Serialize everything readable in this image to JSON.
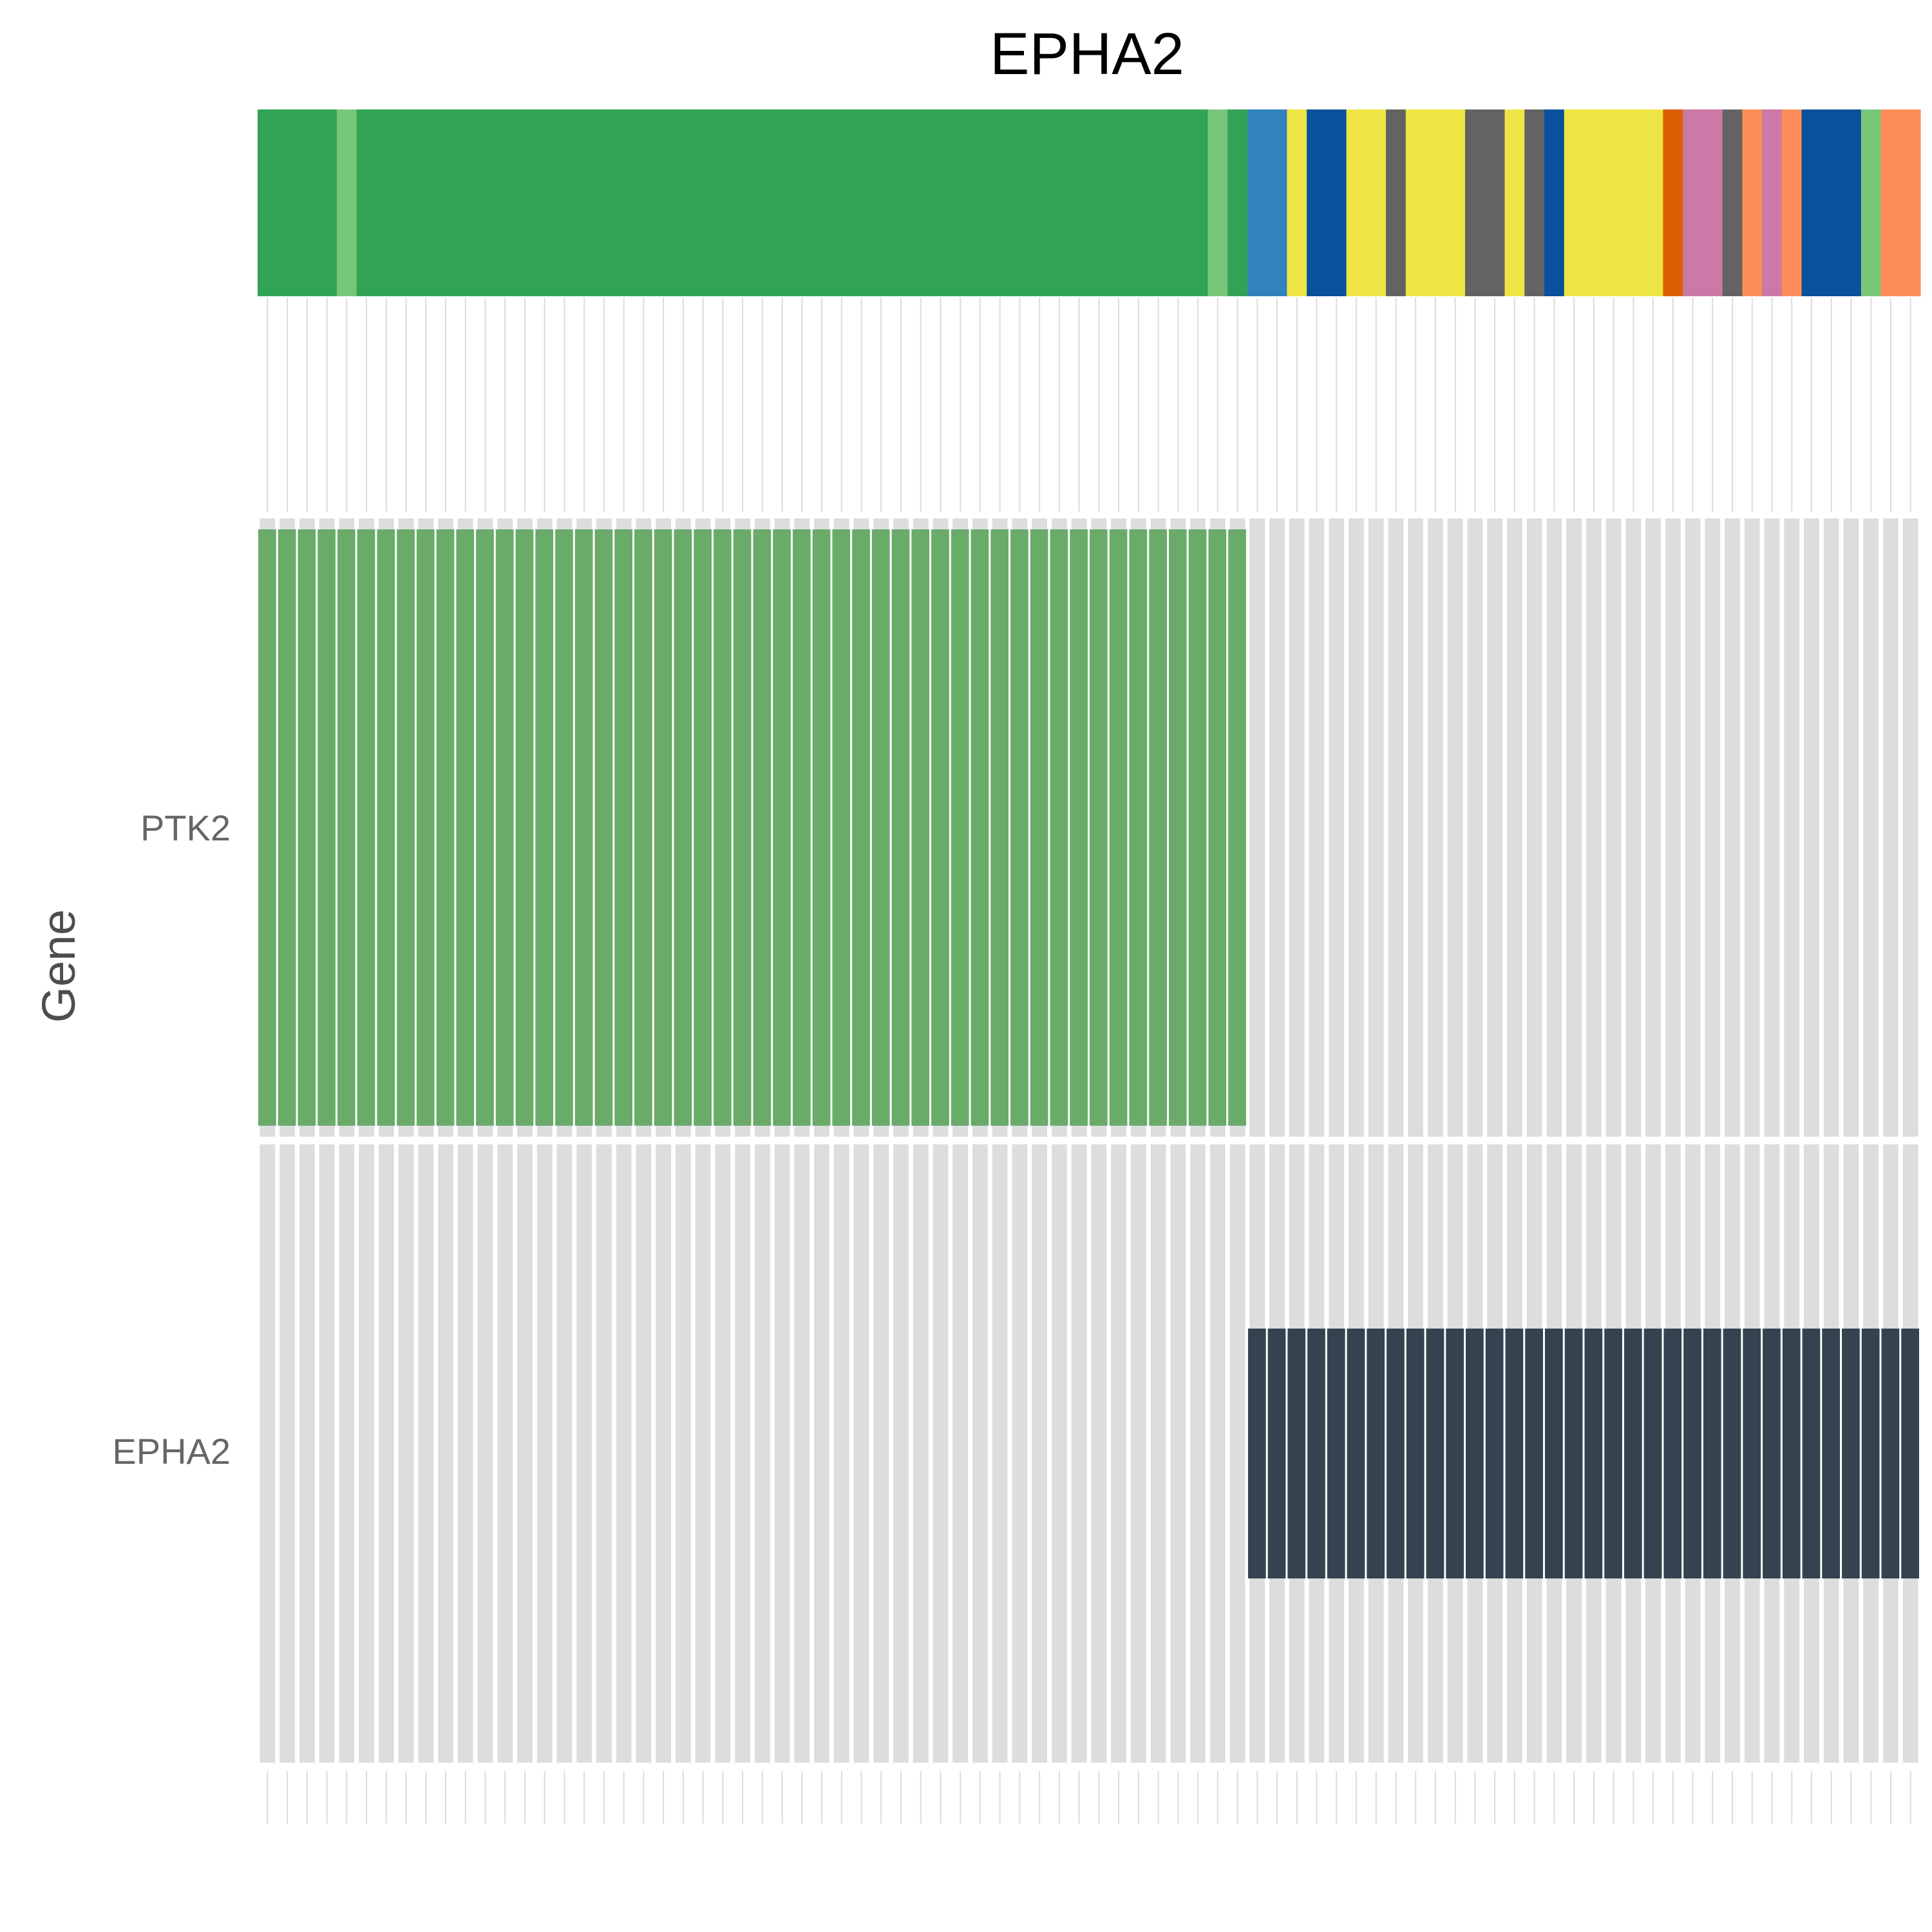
{
  "chart_data": {
    "type": "heatmap",
    "title": "EPHA2",
    "ylabel": "Gene",
    "rows": [
      "PTK2",
      "EPHA2"
    ],
    "n_samples": 84,
    "segments": [
      {
        "gene": "PTK2",
        "start": 0,
        "end": 50,
        "color": "#6aab6a"
      },
      {
        "gene": "EPHA2",
        "start": 50,
        "end": 84,
        "color": "#34434f"
      }
    ],
    "cell_background": "#dddddd",
    "annotation_track": {
      "colors": {
        "green": "#31a354",
        "light_green": "#78c679",
        "mid_blue": "#3182bd",
        "dark_blue": "#08519c",
        "yellow": "#eee444",
        "grey": "#636363",
        "dark_orange": "#d95f02",
        "pink": "#cc79a7",
        "salmon": "#fc8d59"
      },
      "samples": [
        "green",
        "green",
        "green",
        "green",
        "light_green",
        "green",
        "green",
        "green",
        "green",
        "green",
        "green",
        "green",
        "green",
        "green",
        "green",
        "green",
        "green",
        "green",
        "green",
        "green",
        "green",
        "green",
        "green",
        "green",
        "green",
        "green",
        "green",
        "green",
        "green",
        "green",
        "green",
        "green",
        "green",
        "green",
        "green",
        "green",
        "green",
        "green",
        "green",
        "green",
        "green",
        "green",
        "green",
        "green",
        "green",
        "green",
        "green",
        "green",
        "light_green",
        "green",
        "mid_blue",
        "mid_blue",
        "yellow",
        "dark_blue",
        "dark_blue",
        "yellow",
        "yellow",
        "grey",
        "yellow",
        "yellow",
        "yellow",
        "grey",
        "grey",
        "yellow",
        "grey",
        "dark_blue",
        "yellow",
        "yellow",
        "yellow",
        "yellow",
        "yellow",
        "dark_orange",
        "pink",
        "pink",
        "grey",
        "salmon",
        "pink",
        "salmon",
        "dark_blue",
        "dark_blue",
        "dark_blue",
        "light_green",
        "salmon",
        "salmon"
      ]
    }
  }
}
